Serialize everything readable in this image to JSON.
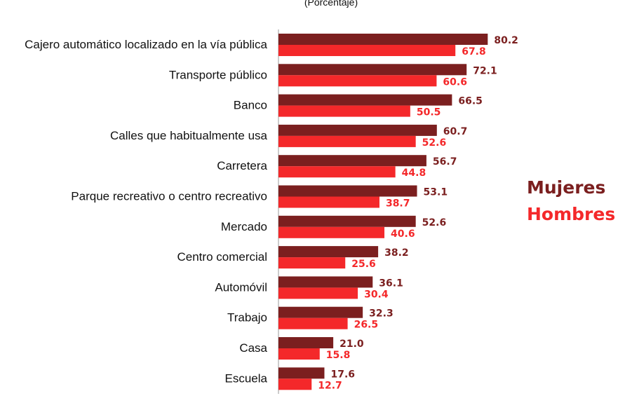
{
  "chart_data": {
    "type": "bar",
    "orientation": "horizontal",
    "subtitle": "(Porcentaje)",
    "categories": [
      "Cajero automático localizado en la vía pública",
      "Transporte público",
      "Banco",
      "Calles que habitualmente usa",
      "Carretera",
      "Parque recreativo o centro recreativo",
      "Mercado",
      "Centro comercial",
      "Automóvil",
      "Trabajo",
      "Casa",
      "Escuela"
    ],
    "series": [
      {
        "name": "Mujeres",
        "color": "#7B1F1F",
        "values": [
          80.2,
          72.1,
          66.5,
          60.7,
          56.7,
          53.1,
          52.6,
          38.2,
          36.1,
          32.3,
          21.0,
          17.6
        ],
        "labels": [
          "80.2",
          "72.1",
          "66.5",
          "60.7",
          "56.7",
          "53.1",
          "52.6",
          "38.2",
          "36.1",
          "32.3",
          "21.0",
          "17.6"
        ]
      },
      {
        "name": "Hombres",
        "color": "#F4282A",
        "values": [
          67.8,
          60.6,
          50.5,
          52.6,
          44.8,
          38.7,
          40.6,
          25.6,
          30.4,
          26.5,
          15.8,
          12.7
        ],
        "labels": [
          "67.8",
          "60.6",
          "50.5",
          "52.6",
          "44.8",
          "38.7",
          "40.6",
          "25.6",
          "30.4",
          "26.5",
          "15.8",
          "12.7"
        ]
      }
    ],
    "xlim": [
      0,
      100
    ],
    "grid": false,
    "legend_position": "right"
  }
}
